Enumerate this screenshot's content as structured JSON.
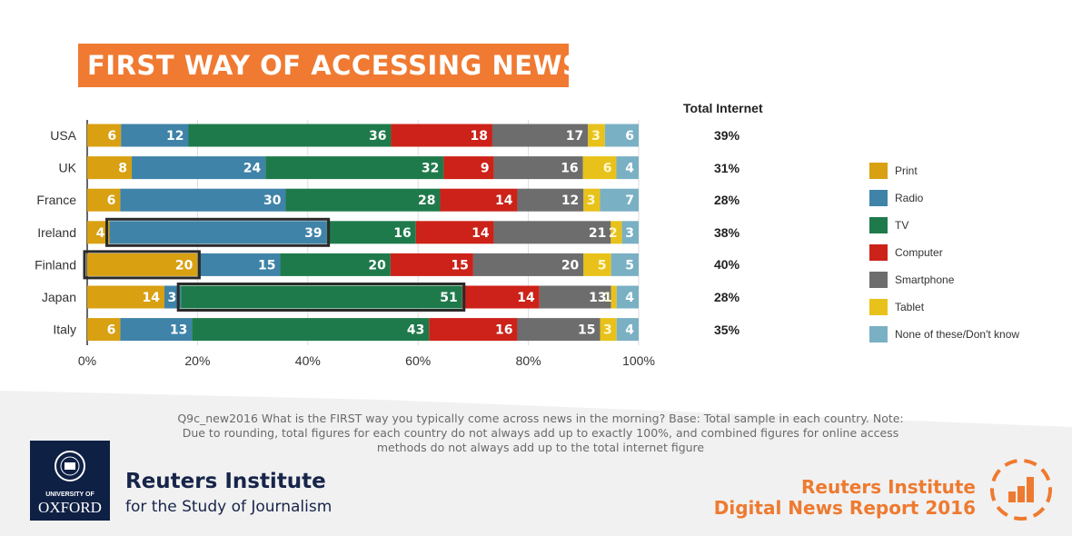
{
  "title": "FIRST WAY OF ACCESSING NEWS",
  "chart_data": {
    "type": "bar",
    "orientation": "horizontal-stacked-100",
    "categories": [
      "USA",
      "UK",
      "France",
      "Ireland",
      "Finland",
      "Japan",
      "Italy"
    ],
    "series": [
      {
        "name": "Print",
        "color": "#d9a012",
        "values": [
          6,
          8,
          6,
          4,
          20,
          14,
          6
        ]
      },
      {
        "name": "Radio",
        "color": "#3f83a8",
        "values": [
          12,
          24,
          30,
          39,
          15,
          3,
          13
        ]
      },
      {
        "name": "TV",
        "color": "#1f7a4b",
        "values": [
          36,
          32,
          28,
          16,
          20,
          51,
          43
        ]
      },
      {
        "name": "Computer",
        "color": "#cc2219",
        "values": [
          18,
          9,
          14,
          14,
          15,
          14,
          16
        ]
      },
      {
        "name": "Smartphone",
        "color": "#6d6d6d",
        "values": [
          17,
          16,
          12,
          21,
          20,
          13,
          15
        ]
      },
      {
        "name": "Tablet",
        "color": "#e8c21a",
        "values": [
          3,
          6,
          3,
          2,
          5,
          1,
          3
        ]
      },
      {
        "name": "None of these/Don't know",
        "color": "#7ab0c4",
        "values": [
          6,
          4,
          7,
          3,
          5,
          4,
          4
        ]
      }
    ],
    "highlighted": [
      {
        "category": "Ireland",
        "series": "Radio"
      },
      {
        "category": "Finland",
        "series": "Print"
      },
      {
        "category": "Japan",
        "series": "TV"
      }
    ],
    "xlim": [
      0,
      100
    ],
    "xticks": [
      "0%",
      "20%",
      "40%",
      "60%",
      "80%",
      "100%"
    ],
    "grid": true,
    "legend_position": "right",
    "total_internet": {
      "label": "Total Internet",
      "values": [
        "39%",
        "31%",
        "28%",
        "38%",
        "40%",
        "28%",
        "35%"
      ]
    }
  },
  "note": "Q9c_new2016 What is the FIRST way you typically come across news in the morning? Base: Total sample in each country. Note: Due to rounding, total figures for each country do not always add up to exactly 100%, and combined figures for online access methods do not always add up to the total internet figure",
  "footer": {
    "oxford_line1": "UNIVERSITY OF",
    "oxford_line2": "OXFORD",
    "institute_name": "Reuters Institute",
    "institute_sub": "for the Study of Journalism",
    "report_line1": "Reuters Institute",
    "report_line2": "Digital News Report 2016"
  }
}
